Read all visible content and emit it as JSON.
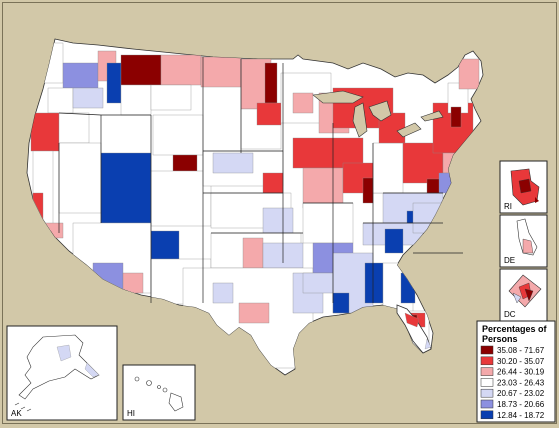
{
  "legend": {
    "title_line1": "Percentages of",
    "title_line2": "Persons",
    "classes": [
      {
        "label": "35.08 - 71.67",
        "color": "#8b0000"
      },
      {
        "label": "30.20 - 35.07",
        "color": "#e8383a"
      },
      {
        "label": "26.44 - 30.19",
        "color": "#f4a9ab"
      },
      {
        "label": "23.03 - 26.43",
        "color": "#ffffff"
      },
      {
        "label": "20.67 - 23.02",
        "color": "#d4d8f4"
      },
      {
        "label": "18.73 - 20.66",
        "color": "#8c90e0"
      },
      {
        "label": "12.84 - 18.72",
        "color": "#0a3fb0"
      }
    ]
  },
  "insets": {
    "alaska": "AK",
    "hawaii": "HI",
    "rhode_island": "RI",
    "delaware": "DE",
    "dc": "DC"
  }
}
